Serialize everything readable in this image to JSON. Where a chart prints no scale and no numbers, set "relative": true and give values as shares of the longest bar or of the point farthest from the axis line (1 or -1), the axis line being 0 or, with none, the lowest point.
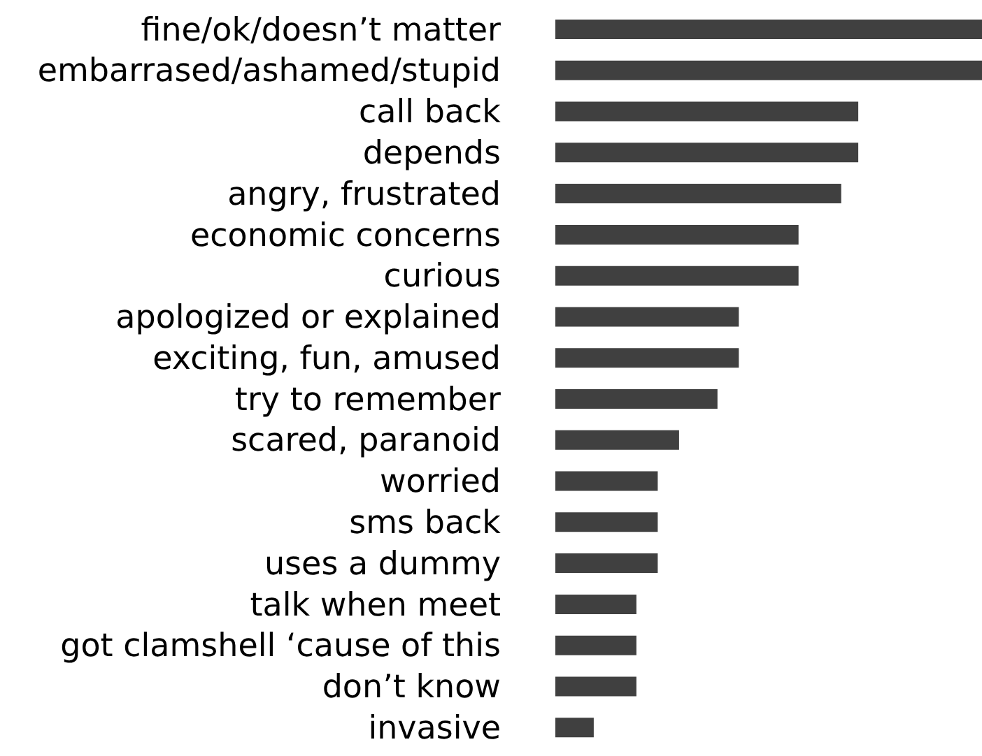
{
  "chart_data": {
    "type": "bar",
    "orientation": "horizontal",
    "relative": true,
    "color": "#404040",
    "categories": [
      "fine/ok/doesn’t matter",
      "embarrased/ashamed/stupid",
      "call back",
      "depends",
      "angry, frustrated",
      "economic concerns",
      "curious",
      "apologized or explained",
      "exciting, fun, amused",
      "try to remember",
      "scared, paranoid",
      "worried",
      "sms back",
      "uses a dummy",
      "talk when meet",
      "got clamshell ‘cause of this",
      "don’t know",
      "invasive"
    ],
    "values": [
      1,
      1,
      0.71,
      0.71,
      0.67,
      0.57,
      0.57,
      0.43,
      0.43,
      0.38,
      0.29,
      0.24,
      0.24,
      0.24,
      0.19,
      0.19,
      0.19,
      0.09
    ]
  }
}
